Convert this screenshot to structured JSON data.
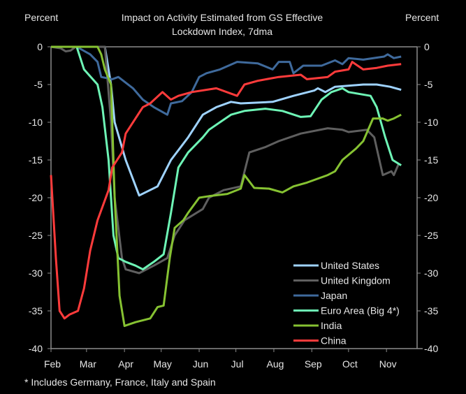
{
  "chart_data": {
    "type": "line",
    "title_line1": "Impact on Activity  Estimated from GS Effective",
    "title_line2": "Lockdown Index, 7dma",
    "ylabel_left": "Percent",
    "ylabel_right": "Percent",
    "x_unit": "days since Feb 1",
    "xlim": [
      0,
      299
    ],
    "ylim": [
      -40,
      0
    ],
    "yticks": [
      0,
      -5,
      -10,
      -15,
      -20,
      -25,
      -30,
      -35,
      -40
    ],
    "xticks": [
      {
        "label": "Feb",
        "day": 0
      },
      {
        "label": "Mar",
        "day": 29
      },
      {
        "label": "Apr",
        "day": 60
      },
      {
        "label": "May",
        "day": 90
      },
      {
        "label": "Jun",
        "day": 121
      },
      {
        "label": "Jul",
        "day": 151
      },
      {
        "label": "Aug",
        "day": 182
      },
      {
        "label": "Sep",
        "day": 213
      },
      {
        "label": "Oct",
        "day": 243
      },
      {
        "label": "Nov",
        "day": 274
      }
    ],
    "footnote": "* Includes Germany, France, Italy and Spain",
    "legend_position": "bottom-right",
    "series": [
      {
        "name": "United States",
        "color": "#9fd3ff",
        "points": [
          [
            0,
            0
          ],
          [
            44,
            0
          ],
          [
            49,
            -5
          ],
          [
            52,
            -10
          ],
          [
            61,
            -15
          ],
          [
            72,
            -19.7
          ],
          [
            87,
            -18.5
          ],
          [
            98,
            -15
          ],
          [
            112,
            -12
          ],
          [
            124,
            -9
          ],
          [
            135,
            -8
          ],
          [
            147,
            -7.3
          ],
          [
            155,
            -7.5
          ],
          [
            181,
            -7.3
          ],
          [
            198,
            -6.5
          ],
          [
            215,
            -5.8
          ],
          [
            218,
            -5.5
          ],
          [
            224,
            -6
          ],
          [
            232,
            -5.3
          ],
          [
            255,
            -5
          ],
          [
            266,
            -5
          ],
          [
            277,
            -5.3
          ],
          [
            286,
            -5.7
          ]
        ]
      },
      {
        "name": "United Kingdom",
        "color": "#5f5f5f",
        "points": [
          [
            0,
            0
          ],
          [
            8,
            -0.2
          ],
          [
            12,
            -0.6
          ],
          [
            16,
            -0.5
          ],
          [
            20,
            0
          ],
          [
            44,
            0
          ],
          [
            49,
            -10
          ],
          [
            52,
            -20
          ],
          [
            58,
            -28
          ],
          [
            61,
            -29.5
          ],
          [
            72,
            -30
          ],
          [
            84,
            -29
          ],
          [
            95,
            -28
          ],
          [
            101,
            -25
          ],
          [
            109,
            -23
          ],
          [
            124,
            -21.5
          ],
          [
            129,
            -20
          ],
          [
            141,
            -19
          ],
          [
            155,
            -18.5
          ],
          [
            162,
            -14
          ],
          [
            175,
            -13.3
          ],
          [
            186,
            -12.5
          ],
          [
            204,
            -11.5
          ],
          [
            226,
            -10.8
          ],
          [
            238,
            -11
          ],
          [
            243,
            -11.3
          ],
          [
            258,
            -11
          ],
          [
            264,
            -12
          ],
          [
            271,
            -17
          ],
          [
            278,
            -16.5
          ],
          [
            280,
            -17
          ],
          [
            284,
            -15.5
          ]
        ]
      },
      {
        "name": "Japan",
        "color": "#3f6a9c",
        "points": [
          [
            0,
            0
          ],
          [
            21,
            0
          ],
          [
            32,
            -1
          ],
          [
            38,
            -2
          ],
          [
            41,
            -4
          ],
          [
            50,
            -4.3
          ],
          [
            55,
            -4
          ],
          [
            67,
            -5.5
          ],
          [
            75,
            -7
          ],
          [
            84,
            -8
          ],
          [
            95,
            -9
          ],
          [
            98,
            -7.5
          ],
          [
            107,
            -7.2
          ],
          [
            115,
            -6
          ],
          [
            121,
            -4
          ],
          [
            127,
            -3.5
          ],
          [
            138,
            -3
          ],
          [
            152,
            -2
          ],
          [
            169,
            -2.2
          ],
          [
            181,
            -3
          ],
          [
            186,
            -2
          ],
          [
            195,
            -2
          ],
          [
            198,
            -3.5
          ],
          [
            206,
            -2.5
          ],
          [
            221,
            -2.5
          ],
          [
            232,
            -1.8
          ],
          [
            238,
            -2.3
          ],
          [
            243,
            -1.5
          ],
          [
            255,
            -1.7
          ],
          [
            272,
            -1.3
          ],
          [
            275,
            -1
          ],
          [
            280,
            -1.5
          ],
          [
            286,
            -1.3
          ]
        ]
      },
      {
        "name": "Euro Area (Big 4*)",
        "color": "#6ef5b6",
        "points": [
          [
            0,
            0
          ],
          [
            21,
            0
          ],
          [
            27,
            -3
          ],
          [
            38,
            -5
          ],
          [
            42,
            -8
          ],
          [
            47,
            -15
          ],
          [
            51,
            -25
          ],
          [
            55,
            -28
          ],
          [
            61,
            -28.5
          ],
          [
            69,
            -29
          ],
          [
            75,
            -29.5
          ],
          [
            84,
            -28.5
          ],
          [
            92,
            -27.5
          ],
          [
            98,
            -22
          ],
          [
            104,
            -16
          ],
          [
            112,
            -14
          ],
          [
            124,
            -12
          ],
          [
            129,
            -11
          ],
          [
            138,
            -10
          ],
          [
            147,
            -9
          ],
          [
            158,
            -8.5
          ],
          [
            175,
            -8.2
          ],
          [
            189,
            -8.5
          ],
          [
            204,
            -9.3
          ],
          [
            212,
            -9.2
          ],
          [
            221,
            -7
          ],
          [
            229,
            -6
          ],
          [
            238,
            -5.5
          ],
          [
            243,
            -6
          ],
          [
            261,
            -6.5
          ],
          [
            266,
            -8
          ],
          [
            273,
            -12
          ],
          [
            279,
            -15
          ],
          [
            286,
            -15.7
          ]
        ]
      },
      {
        "name": "India",
        "color": "#86c232",
        "points": [
          [
            0,
            0
          ],
          [
            38,
            0
          ],
          [
            41,
            -1
          ],
          [
            44,
            -3
          ],
          [
            49,
            -5
          ],
          [
            52,
            -20
          ],
          [
            56,
            -33
          ],
          [
            60,
            -37
          ],
          [
            69,
            -36.5
          ],
          [
            81,
            -36
          ],
          [
            87,
            -34.5
          ],
          [
            92,
            -34.3
          ],
          [
            97,
            -28
          ],
          [
            101,
            -24
          ],
          [
            108,
            -23
          ],
          [
            112,
            -22
          ],
          [
            121,
            -20
          ],
          [
            129,
            -19.8
          ],
          [
            144,
            -19.5
          ],
          [
            155,
            -18.8
          ],
          [
            158,
            -17
          ],
          [
            166,
            -18.7
          ],
          [
            178,
            -18.8
          ],
          [
            189,
            -19.3
          ],
          [
            198,
            -18.5
          ],
          [
            209,
            -18
          ],
          [
            226,
            -17
          ],
          [
            232,
            -16.5
          ],
          [
            238,
            -15
          ],
          [
            249,
            -13.5
          ],
          [
            255,
            -12.5
          ],
          [
            263,
            -9.5
          ],
          [
            271,
            -9.5
          ],
          [
            275,
            -9.8
          ],
          [
            280,
            -9.5
          ],
          [
            286,
            -9
          ]
        ]
      },
      {
        "name": "China",
        "color": "#ff3b3b",
        "points": [
          [
            0,
            -17
          ],
          [
            4,
            -28
          ],
          [
            7,
            -35
          ],
          [
            11,
            -36
          ],
          [
            15,
            -35.5
          ],
          [
            22,
            -35
          ],
          [
            27,
            -32
          ],
          [
            32,
            -27
          ],
          [
            38,
            -23
          ],
          [
            47,
            -19
          ],
          [
            50,
            -16
          ],
          [
            58,
            -14
          ],
          [
            61,
            -11.5
          ],
          [
            75,
            -8
          ],
          [
            81,
            -7.5
          ],
          [
            91,
            -6
          ],
          [
            98,
            -7
          ],
          [
            104,
            -6.5
          ],
          [
            115,
            -6
          ],
          [
            135,
            -5.5
          ],
          [
            152,
            -6.5
          ],
          [
            158,
            -5
          ],
          [
            169,
            -4.5
          ],
          [
            186,
            -4
          ],
          [
            204,
            -3.7
          ],
          [
            209,
            -4.3
          ],
          [
            226,
            -4
          ],
          [
            232,
            -3.3
          ],
          [
            243,
            -3
          ],
          [
            246,
            -2
          ],
          [
            255,
            -3
          ],
          [
            266,
            -2.8
          ],
          [
            275,
            -2.5
          ],
          [
            286,
            -2.3
          ]
        ]
      }
    ]
  }
}
